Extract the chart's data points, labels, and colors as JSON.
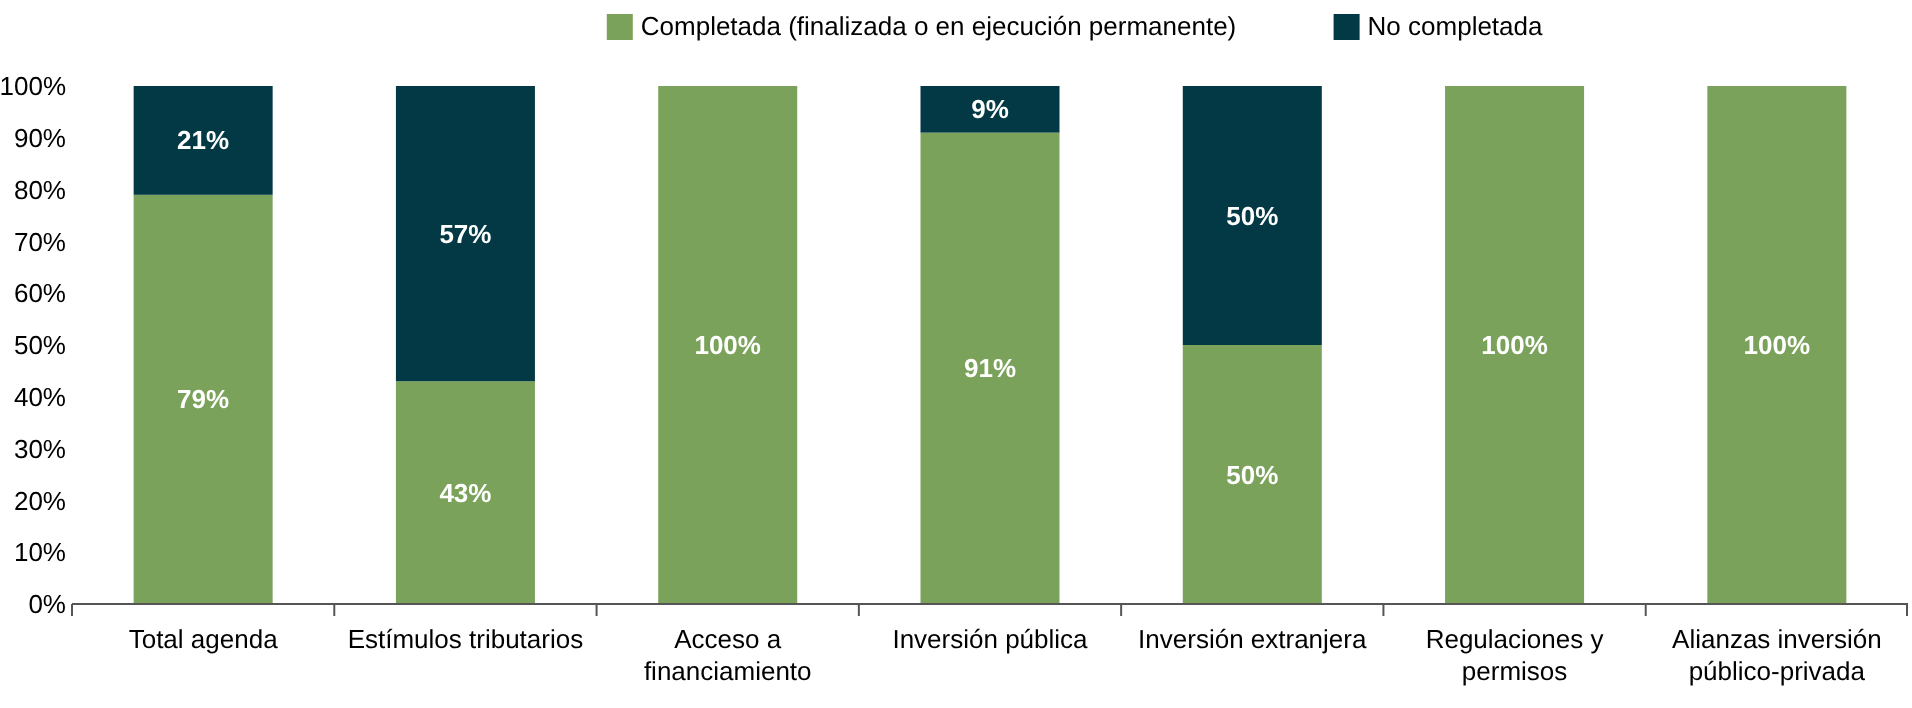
{
  "chart_data": {
    "type": "bar",
    "stacked": true,
    "categories": [
      "Total agenda",
      "Estímulos tributarios",
      "Acceso a financiamiento",
      "Inversión pública",
      "Inversión extranjera",
      "Regulaciones y permisos",
      "Alianzas inversión público-privada"
    ],
    "series": [
      {
        "name": "Completada (finalizada o en ejecución permanente)",
        "color": "#7aa25a",
        "values": [
          79,
          43,
          100,
          91,
          50,
          100,
          100
        ],
        "value_labels": [
          "79%",
          "43%",
          "100%",
          "91%",
          "50%",
          "100%",
          "100%"
        ]
      },
      {
        "name": "No completada",
        "color": "#033944",
        "values": [
          21,
          57,
          0,
          9,
          50,
          0,
          0
        ],
        "value_labels": [
          "21%",
          "57%",
          null,
          "9%",
          "50%",
          null,
          null
        ]
      }
    ],
    "ylim": [
      0,
      100
    ],
    "yticks": [
      {
        "value": 0,
        "label": "0%"
      },
      {
        "value": 10,
        "label": "10%"
      },
      {
        "value": 20,
        "label": "20%"
      },
      {
        "value": 30,
        "label": "30%"
      },
      {
        "value": 40,
        "label": "40%"
      },
      {
        "value": 50,
        "label": "50%"
      },
      {
        "value": 60,
        "label": "60%"
      },
      {
        "value": 70,
        "label": "70%"
      },
      {
        "value": 80,
        "label": "80%"
      },
      {
        "value": 90,
        "label": "90%"
      },
      {
        "value": 100,
        "label": "100%"
      }
    ],
    "grid": false,
    "legend": "top"
  }
}
